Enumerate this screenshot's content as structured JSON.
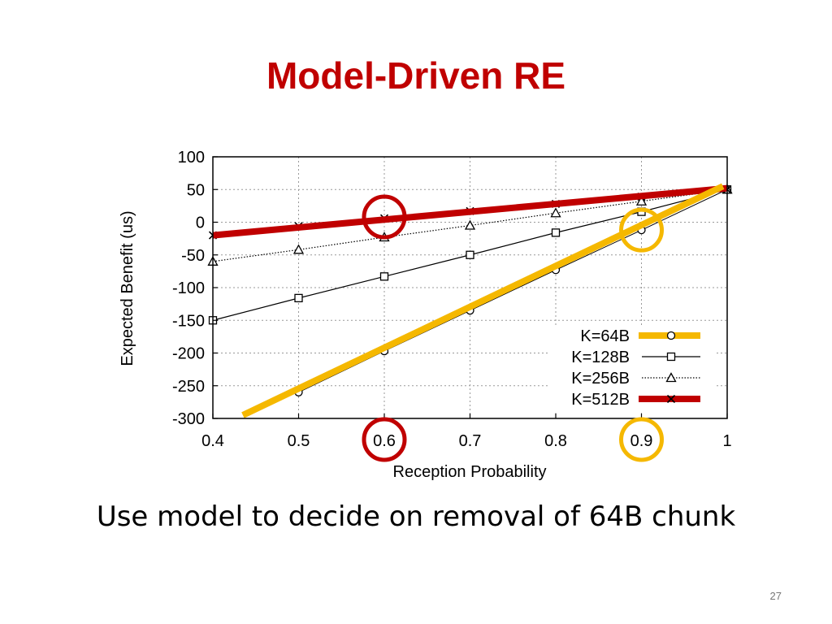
{
  "slide": {
    "title": "Model-Driven RE",
    "caption": "Use model to decide on removal of 64B chunk",
    "page_number": "27"
  },
  "chart_data": {
    "type": "line",
    "xlabel": "Reception Probability",
    "ylabel": "Expected Benefit (us)",
    "xlim": [
      0.4,
      1
    ],
    "ylim": [
      -300,
      100
    ],
    "x_ticks": [
      0.4,
      0.5,
      0.6,
      0.7,
      0.8,
      0.9,
      1
    ],
    "x_tick_labels": [
      "0.4",
      "0.5",
      "0.6",
      "0.7",
      "0.8",
      "0.9",
      "1"
    ],
    "y_ticks": [
      100,
      50,
      0,
      -50,
      -100,
      -150,
      -200,
      -250,
      -300
    ],
    "y_tick_labels": [
      "100",
      "50",
      "0",
      "-50",
      "-100",
      "-150",
      "-200",
      "-250",
      "-300"
    ],
    "grid": true,
    "legend_position": "bottom-right",
    "series": [
      {
        "name": "K=64B",
        "marker": "circle",
        "line_style": "highlight",
        "color": "#f5b800",
        "x": [
          0.5,
          0.6,
          0.7,
          0.8,
          0.9,
          1
        ],
        "values": [
          -260,
          -197,
          -135,
          -73,
          -12,
          50
        ]
      },
      {
        "name": "K=128B",
        "marker": "square",
        "line_style": "solid",
        "color": "#000000",
        "x": [
          0.4,
          0.5,
          0.6,
          0.7,
          0.8,
          0.9,
          1
        ],
        "values": [
          -150,
          -116,
          -83,
          -50,
          -16,
          16,
          50
        ]
      },
      {
        "name": "K=256B",
        "marker": "triangle",
        "line_style": "dotted",
        "color": "#000000",
        "x": [
          0.4,
          0.5,
          0.6,
          0.7,
          0.8,
          0.9,
          1
        ],
        "values": [
          -60,
          -42,
          -23,
          -5,
          14,
          32,
          50
        ]
      },
      {
        "name": "K=512B",
        "marker": "cross",
        "line_style": "highlight",
        "color": "#c00000",
        "x": [
          0.4,
          0.5,
          0.6,
          0.7,
          0.8,
          0.9,
          1
        ],
        "values": [
          -20,
          -6,
          6,
          17,
          28,
          39,
          50
        ]
      }
    ],
    "highlight_lines": [
      {
        "series": "K=512B",
        "color": "#c00000",
        "from": [
          0.4,
          -20
        ],
        "to": [
          1,
          52
        ]
      },
      {
        "series": "K=64B",
        "color": "#f5b800",
        "from": [
          0.435,
          -295
        ],
        "to": [
          0.995,
          55
        ]
      }
    ],
    "annotations": [
      {
        "type": "circle",
        "color": "#c00000",
        "target": "point",
        "x": 0.6,
        "y": 8
      },
      {
        "type": "circle",
        "color": "#f5b800",
        "target": "point",
        "x": 0.9,
        "y": -12
      },
      {
        "type": "circle",
        "color": "#c00000",
        "target": "x-tick",
        "x": 0.6
      },
      {
        "type": "circle",
        "color": "#f5b800",
        "target": "x-tick",
        "x": 0.9
      }
    ]
  }
}
